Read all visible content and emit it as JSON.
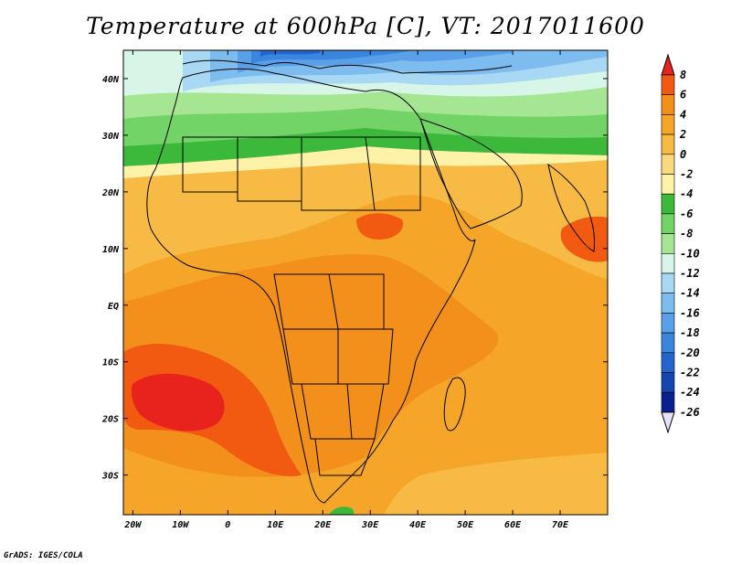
{
  "title": "Temperature at 600hPa [C], VT: 2017011600",
  "footer": "GrADS: IGES/COLA",
  "map": {
    "lon_range": [
      -22,
      80
    ],
    "lat_range": [
      -37,
      45
    ],
    "lon_ticks": [
      {
        "value": -20,
        "label": "20W"
      },
      {
        "value": -10,
        "label": "10W"
      },
      {
        "value": 0,
        "label": "0"
      },
      {
        "value": 10,
        "label": "10E"
      },
      {
        "value": 20,
        "label": "20E"
      },
      {
        "value": 30,
        "label": "30E"
      },
      {
        "value": 40,
        "label": "40E"
      },
      {
        "value": 50,
        "label": "50E"
      },
      {
        "value": 60,
        "label": "60E"
      },
      {
        "value": 70,
        "label": "70E"
      }
    ],
    "lat_ticks": [
      {
        "value": 40,
        "label": "40N"
      },
      {
        "value": 30,
        "label": "30N"
      },
      {
        "value": 20,
        "label": "20N"
      },
      {
        "value": 10,
        "label": "10N"
      },
      {
        "value": 0,
        "label": "EQ"
      },
      {
        "value": -10,
        "label": "10S"
      },
      {
        "value": -20,
        "label": "20S"
      },
      {
        "value": -30,
        "label": "30S"
      }
    ]
  },
  "colorbar": {
    "levels": [
      "8",
      "6",
      "4",
      "2",
      "0",
      "-2",
      "-4",
      "-6",
      "-8",
      "-10",
      "-12",
      "-14",
      "-16",
      "-18",
      "-20",
      "-22",
      "-24",
      "-26"
    ],
    "colors": [
      "#e8221c",
      "#f25a12",
      "#f3901c",
      "#f5a629",
      "#f7bb45",
      "#f9d87e",
      "#fdf2a8",
      "#3cb83a",
      "#72d466",
      "#a6e693",
      "#d8f6e8",
      "#a8d8f4",
      "#7cbcef",
      "#5aa0e8",
      "#3a86df",
      "#2364cf",
      "#1446b2",
      "#0b2090",
      "#e6e0f8"
    ]
  }
}
